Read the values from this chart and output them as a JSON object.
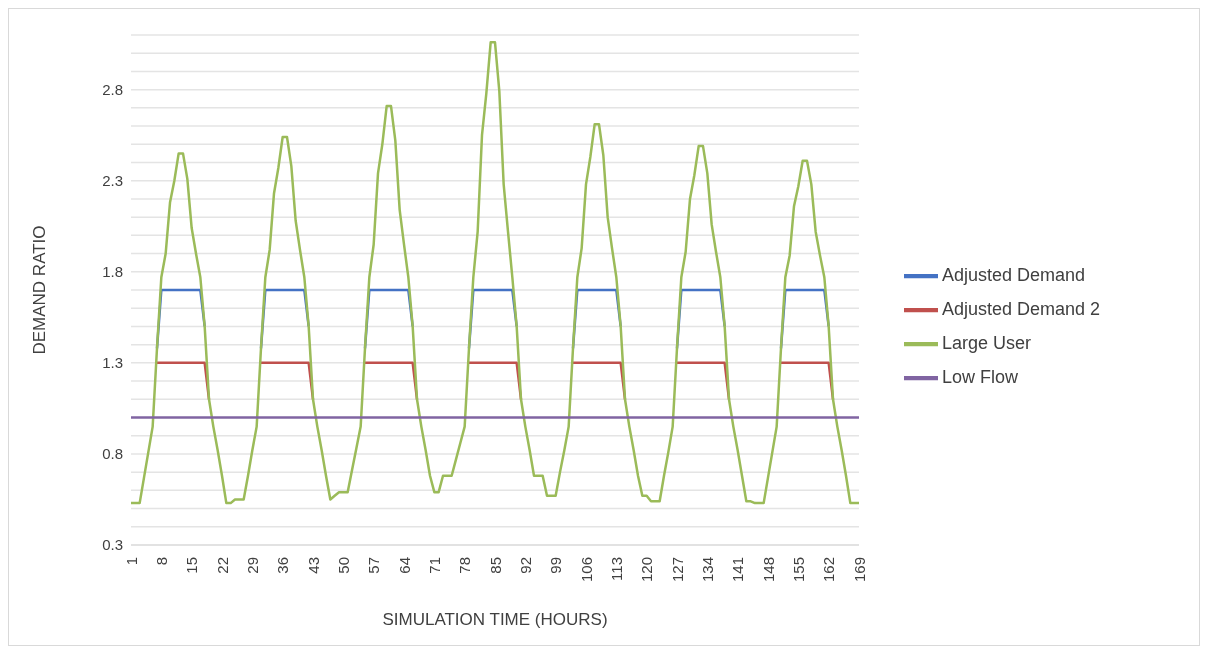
{
  "chart_data": {
    "type": "line",
    "xlabel": "SIMULATION TIME (HOURS)",
    "ylabel": "DEMAND RATIO",
    "x": [
      1,
      2,
      3,
      4,
      5,
      6,
      7,
      8,
      9,
      10,
      11,
      12,
      13,
      14,
      15,
      16,
      17,
      18,
      19,
      20,
      21,
      22,
      23,
      24,
      25,
      26,
      27,
      28,
      29,
      30,
      31,
      32,
      33,
      34,
      35,
      36,
      37,
      38,
      39,
      40,
      41,
      42,
      43,
      44,
      45,
      46,
      47,
      48,
      49,
      50,
      51,
      52,
      53,
      54,
      55,
      56,
      57,
      58,
      59,
      60,
      61,
      62,
      63,
      64,
      65,
      66,
      67,
      68,
      69,
      70,
      71,
      72,
      73,
      74,
      75,
      76,
      77,
      78,
      79,
      80,
      81,
      82,
      83,
      84,
      85,
      86,
      87,
      88,
      89,
      90,
      91,
      92,
      93,
      94,
      95,
      96,
      97,
      98,
      99,
      100,
      101,
      102,
      103,
      104,
      105,
      106,
      107,
      108,
      109,
      110,
      111,
      112,
      113,
      114,
      115,
      116,
      117,
      118,
      119,
      120,
      121,
      122,
      123,
      124,
      125,
      126,
      127,
      128,
      129,
      130,
      131,
      132,
      133,
      134,
      135,
      136,
      137,
      138,
      139,
      140,
      141,
      142,
      143,
      144,
      145,
      146,
      147,
      148,
      149,
      150,
      151,
      152,
      153,
      154,
      155,
      156,
      157,
      158,
      159,
      160,
      161,
      162,
      163,
      164,
      165,
      166,
      167,
      168,
      169
    ],
    "xlim": [
      1,
      169
    ],
    "xticks": [
      1,
      8,
      15,
      22,
      29,
      36,
      43,
      50,
      57,
      64,
      71,
      78,
      85,
      92,
      99,
      106,
      113,
      120,
      127,
      134,
      141,
      148,
      155,
      162,
      169
    ],
    "ylim": [
      0.3,
      3.1
    ],
    "yticks": [
      0.3,
      {
        "value": 0.4,
        "label": null
      },
      {
        "value": 0.5,
        "label": null
      },
      {
        "value": 0.6,
        "label": null
      },
      {
        "value": 0.7,
        "label": null
      },
      0.8,
      {
        "value": 0.9,
        "label": null
      },
      {
        "value": 1.1,
        "label": null
      },
      {
        "value": 1.2,
        "label": null
      },
      1.3,
      {
        "value": 1.4,
        "label": null
      },
      {
        "value": 1.5,
        "label": null
      },
      {
        "value": 1.6,
        "label": null
      },
      {
        "value": 1.7,
        "label": null
      },
      1.8,
      {
        "value": 1.9,
        "label": null
      },
      {
        "value": 2.0,
        "label": null
      },
      {
        "value": 2.1,
        "label": null
      },
      {
        "value": 2.2,
        "label": null
      },
      2.3,
      {
        "value": 2.4,
        "label": null
      },
      {
        "value": 2.5,
        "label": null
      },
      {
        "value": 2.6,
        "label": null
      },
      {
        "value": 2.7,
        "label": null
      },
      2.8,
      {
        "value": 2.9,
        "label": null
      },
      {
        "value": 3.0,
        "label": null
      },
      {
        "value": 3.1,
        "label": null
      }
    ],
    "grid": "y",
    "legend": "right",
    "marker": "none",
    "line_style": "solid",
    "series": [
      {
        "name": "Adjusted Demand",
        "color": "#4472c4",
        "values": [
          null,
          null,
          null,
          null,
          null,
          null,
          1.38,
          1.7,
          1.7,
          1.7,
          1.7,
          1.7,
          1.7,
          1.7,
          1.7,
          1.7,
          1.7,
          1.5,
          null,
          null,
          null,
          null,
          null,
          null,
          null,
          null,
          null,
          null,
          null,
          null,
          1.38,
          1.7,
          1.7,
          1.7,
          1.7,
          1.7,
          1.7,
          1.7,
          1.7,
          1.7,
          1.7,
          1.5,
          null,
          null,
          null,
          null,
          null,
          null,
          null,
          null,
          null,
          null,
          null,
          null,
          1.38,
          1.7,
          1.7,
          1.7,
          1.7,
          1.7,
          1.7,
          1.7,
          1.7,
          1.7,
          1.7,
          1.5,
          null,
          null,
          null,
          null,
          null,
          null,
          null,
          null,
          null,
          null,
          null,
          null,
          1.38,
          1.7,
          1.7,
          1.7,
          1.7,
          1.7,
          1.7,
          1.7,
          1.7,
          1.7,
          1.7,
          1.5,
          null,
          null,
          null,
          null,
          null,
          null,
          null,
          null,
          null,
          null,
          null,
          null,
          1.38,
          1.7,
          1.7,
          1.7,
          1.7,
          1.7,
          1.7,
          1.7,
          1.7,
          1.7,
          1.7,
          1.5,
          null,
          null,
          null,
          null,
          null,
          null,
          null,
          null,
          null,
          null,
          null,
          null,
          1.38,
          1.7,
          1.7,
          1.7,
          1.7,
          1.7,
          1.7,
          1.7,
          1.7,
          1.7,
          1.7,
          1.5,
          null,
          null,
          null,
          null,
          null,
          null,
          null,
          null,
          null,
          null,
          null,
          null,
          1.38,
          1.7,
          1.7,
          1.7,
          1.7,
          1.7,
          1.7,
          1.7,
          1.7,
          1.7,
          1.7,
          1.5,
          null,
          null,
          null,
          null,
          null,
          null,
          null
        ]
      },
      {
        "name": "Adjusted Demand 2",
        "color": "#c0504d",
        "values": [
          null,
          null,
          null,
          null,
          null,
          null,
          1.3,
          1.3,
          1.3,
          1.3,
          1.3,
          1.3,
          1.3,
          1.3,
          1.3,
          1.3,
          1.3,
          1.3,
          1.1,
          null,
          null,
          null,
          null,
          null,
          null,
          null,
          null,
          null,
          null,
          null,
          1.3,
          1.3,
          1.3,
          1.3,
          1.3,
          1.3,
          1.3,
          1.3,
          1.3,
          1.3,
          1.3,
          1.3,
          1.1,
          null,
          null,
          null,
          null,
          null,
          null,
          null,
          null,
          null,
          null,
          null,
          1.3,
          1.3,
          1.3,
          1.3,
          1.3,
          1.3,
          1.3,
          1.3,
          1.3,
          1.3,
          1.3,
          1.3,
          1.1,
          null,
          null,
          null,
          null,
          null,
          null,
          null,
          null,
          null,
          null,
          null,
          1.3,
          1.3,
          1.3,
          1.3,
          1.3,
          1.3,
          1.3,
          1.3,
          1.3,
          1.3,
          1.3,
          1.3,
          1.1,
          null,
          null,
          null,
          null,
          null,
          null,
          null,
          null,
          null,
          null,
          null,
          1.3,
          1.3,
          1.3,
          1.3,
          1.3,
          1.3,
          1.3,
          1.3,
          1.3,
          1.3,
          1.3,
          1.3,
          1.1,
          null,
          null,
          null,
          null,
          null,
          null,
          null,
          null,
          null,
          null,
          null,
          1.3,
          1.3,
          1.3,
          1.3,
          1.3,
          1.3,
          1.3,
          1.3,
          1.3,
          1.3,
          1.3,
          1.3,
          1.1,
          null,
          null,
          null,
          null,
          null,
          null,
          null,
          null,
          null,
          null,
          null,
          1.3,
          1.3,
          1.3,
          1.3,
          1.3,
          1.3,
          1.3,
          1.3,
          1.3,
          1.3,
          1.3,
          1.3,
          1.1,
          null,
          null,
          null,
          null,
          null,
          null
        ]
      },
      {
        "name": "Large User",
        "color": "#9bbb59",
        "values": [
          0.53,
          0.53,
          0.53,
          0.67,
          0.81,
          0.95,
          1.38,
          1.77,
          1.9,
          2.18,
          2.3,
          2.45,
          2.45,
          2.31,
          2.04,
          1.9,
          1.77,
          1.5,
          1.1,
          0.95,
          0.82,
          0.68,
          0.53,
          0.53,
          0.55,
          0.55,
          0.55,
          0.68,
          0.82,
          0.95,
          1.38,
          1.77,
          1.92,
          2.23,
          2.37,
          2.54,
          2.54,
          2.38,
          2.08,
          1.92,
          1.77,
          1.5,
          1.1,
          0.95,
          0.82,
          0.68,
          0.55,
          0.57,
          0.59,
          0.59,
          0.59,
          0.71,
          0.83,
          0.95,
          1.38,
          1.77,
          1.95,
          2.34,
          2.5,
          2.71,
          2.71,
          2.52,
          2.14,
          1.95,
          1.77,
          1.5,
          1.1,
          0.95,
          0.82,
          0.68,
          0.59,
          0.59,
          0.68,
          0.68,
          0.68,
          0.77,
          0.86,
          0.95,
          1.38,
          1.77,
          2.02,
          2.55,
          2.78,
          3.06,
          3.06,
          2.79,
          2.28,
          2.02,
          1.77,
          1.5,
          1.1,
          0.95,
          0.82,
          0.68,
          0.68,
          0.68,
          0.57,
          0.57,
          0.57,
          0.7,
          0.82,
          0.95,
          1.38,
          1.77,
          1.93,
          2.28,
          2.43,
          2.61,
          2.61,
          2.44,
          2.1,
          1.93,
          1.77,
          1.5,
          1.1,
          0.95,
          0.82,
          0.68,
          0.57,
          0.57,
          0.54,
          0.54,
          0.54,
          0.68,
          0.81,
          0.95,
          1.38,
          1.77,
          1.91,
          2.2,
          2.33,
          2.49,
          2.49,
          2.34,
          2.06,
          1.91,
          1.77,
          1.5,
          1.1,
          0.95,
          0.82,
          0.68,
          0.54,
          0.54,
          0.53,
          0.53,
          0.53,
          0.67,
          0.81,
          0.95,
          1.38,
          1.77,
          1.89,
          2.16,
          2.27,
          2.41,
          2.41,
          2.28,
          2.02,
          1.89,
          1.77,
          1.5,
          1.1,
          0.95,
          0.82,
          0.68,
          0.53,
          0.53,
          0.53
        ]
      },
      {
        "name": "Low Flow",
        "color": "#8064a2",
        "values": [
          1,
          1,
          1,
          1,
          1,
          1,
          1,
          1,
          1,
          1,
          1,
          1,
          1,
          1,
          1,
          1,
          1,
          1,
          1,
          1,
          1,
          1,
          1,
          1,
          1,
          1,
          1,
          1,
          1,
          1,
          1,
          1,
          1,
          1,
          1,
          1,
          1,
          1,
          1,
          1,
          1,
          1,
          1,
          1,
          1,
          1,
          1,
          1,
          1,
          1,
          1,
          1,
          1,
          1,
          1,
          1,
          1,
          1,
          1,
          1,
          1,
          1,
          1,
          1,
          1,
          1,
          1,
          1,
          1,
          1,
          1,
          1,
          1,
          1,
          1,
          1,
          1,
          1,
          1,
          1,
          1,
          1,
          1,
          1,
          1,
          1,
          1,
          1,
          1,
          1,
          1,
          1,
          1,
          1,
          1,
          1,
          1,
          1,
          1,
          1,
          1,
          1,
          1,
          1,
          1,
          1,
          1,
          1,
          1,
          1,
          1,
          1,
          1,
          1,
          1,
          1,
          1,
          1,
          1,
          1,
          1,
          1,
          1,
          1,
          1,
          1,
          1,
          1,
          1,
          1,
          1,
          1,
          1,
          1,
          1,
          1,
          1,
          1,
          1,
          1,
          1,
          1,
          1,
          1,
          1,
          1,
          1,
          1,
          1,
          1,
          1,
          1,
          1,
          1,
          1,
          1,
          1,
          1,
          1,
          1,
          1,
          1,
          1,
          1,
          1,
          1,
          1,
          1,
          1
        ]
      }
    ]
  }
}
